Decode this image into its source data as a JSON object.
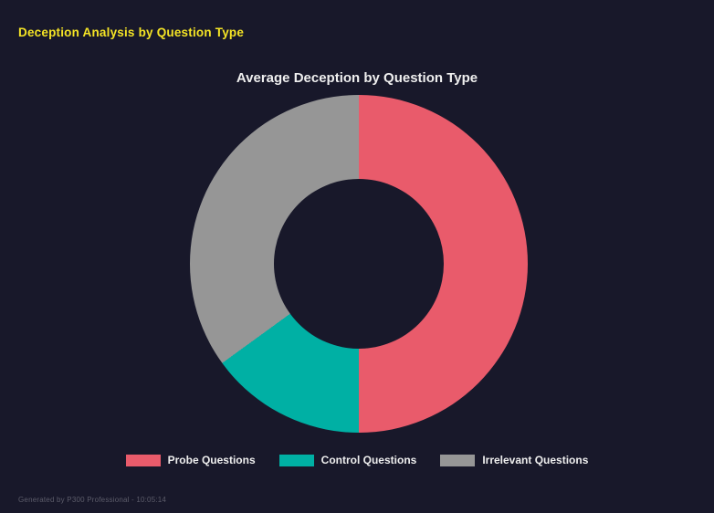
{
  "page": {
    "header": "Deception Analysis by Question Type",
    "footer": "Generated by P300 Professional - 10:05:14"
  },
  "chart_data": {
    "type": "pie",
    "subtype": "donut",
    "title": "Average Deception by Question Type",
    "labels": [
      "Probe Questions",
      "Control Questions",
      "Irrelevant Questions"
    ],
    "values": [
      50,
      15,
      35
    ],
    "colors": [
      "#e95b6b",
      "#00b0a4",
      "#969696"
    ],
    "inner_radius_pct": 50,
    "start_angle_deg": 0,
    "legend_position": "bottom",
    "background_color": "#18182a"
  },
  "colors": {
    "background": "#18182a",
    "accent_yellow": "#f5e425",
    "title_text": "#efefef",
    "legend_text": "#eeeeee",
    "footer_text": "#5c5c6a"
  }
}
